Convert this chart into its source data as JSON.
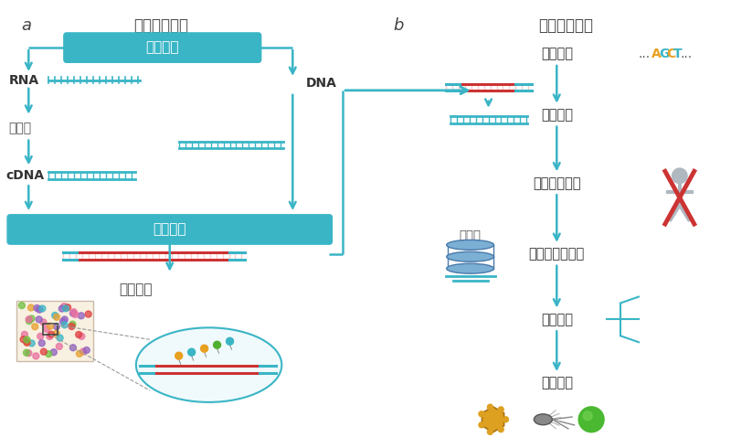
{
  "bg_color": "#ffffff",
  "teal": "#3ab5c6",
  "red": "#cc3333",
  "orange": "#e8a020",
  "gray": "#888888",
  "panel_a_title": "测序实验流程",
  "panel_b_title": "序列分析流程",
  "label_a": "a",
  "label_b": "b",
  "rna_label": "RNA",
  "dna_label": "DNA",
  "cdna_label": "cDNA",
  "step_fanzhuan": "反转录",
  "step_nukuantiqu": "核酸提取",
  "step_wenku": "文库构建",
  "step_shangji": "上机测序",
  "step_jijian": "碱基识别",
  "step_agct": "...AGCT...",
  "step_shuju_zhikong": "数据质控",
  "step_quchu": "去除人源宿主",
  "step_shujuku": "数据库",
  "step_cankao": "参考数据库比对",
  "step_zhongshu": "种属鉴定",
  "step_baogao": "报告解读"
}
